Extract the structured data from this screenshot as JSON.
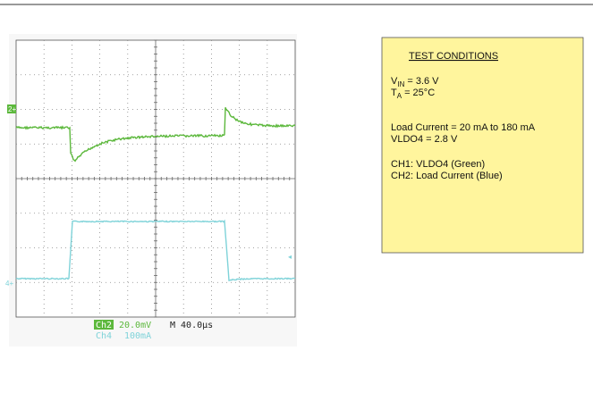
{
  "scope": {
    "markers": {
      "ch2": "2+",
      "ch4": "4+"
    },
    "readout": {
      "ch2_label": "Ch2",
      "ch2_scale": "20.0mV",
      "timebase": "M 40.0µs",
      "ch4_label": "Ch4",
      "ch4_scale": "100mA"
    }
  },
  "conditions": {
    "title": "TEST CONDITIONS",
    "vin": {
      "symbol": "V",
      "subscript": "IN",
      "value": "= 3.6 V"
    },
    "ta": {
      "symbol": "T",
      "subscript": "A",
      "value": "= 25°C"
    },
    "load": "Load Current = 20 mA to 180 mA",
    "vldo": "VLDO4 = 2.8 V",
    "ch1": "CH1: VLDO4 (Green)",
    "ch2": "CH2: Load Current (Blue)"
  }
}
